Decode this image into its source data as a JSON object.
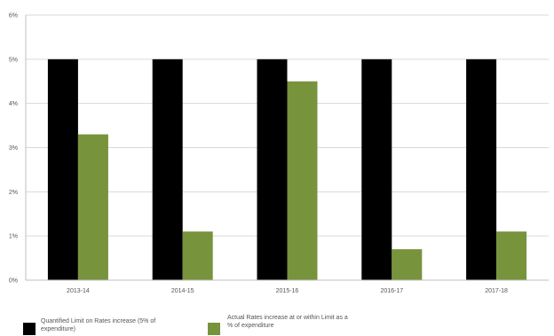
{
  "chart_data": {
    "type": "bar",
    "categories": [
      "2013-14",
      "2014-15",
      "2015-16",
      "2016-17",
      "2017-18"
    ],
    "series": [
      {
        "name": "Quantified Limit on Rates increase (5% of expenditure)",
        "color": "#000000",
        "values": [
          5.0,
          5.0,
          5.0,
          5.0,
          5.0
        ]
      },
      {
        "name": "Actual Rates increase at or within Limit as a % of expenditure",
        "color": "#77933c",
        "values": [
          3.3,
          1.1,
          4.5,
          0.7,
          1.1
        ]
      }
    ],
    "ylim": [
      0,
      6
    ],
    "y_ticks": [
      "0%",
      "1%",
      "2%",
      "3%",
      "4%",
      "5%",
      "6%"
    ],
    "grid": true,
    "legend_position": "bottom"
  }
}
